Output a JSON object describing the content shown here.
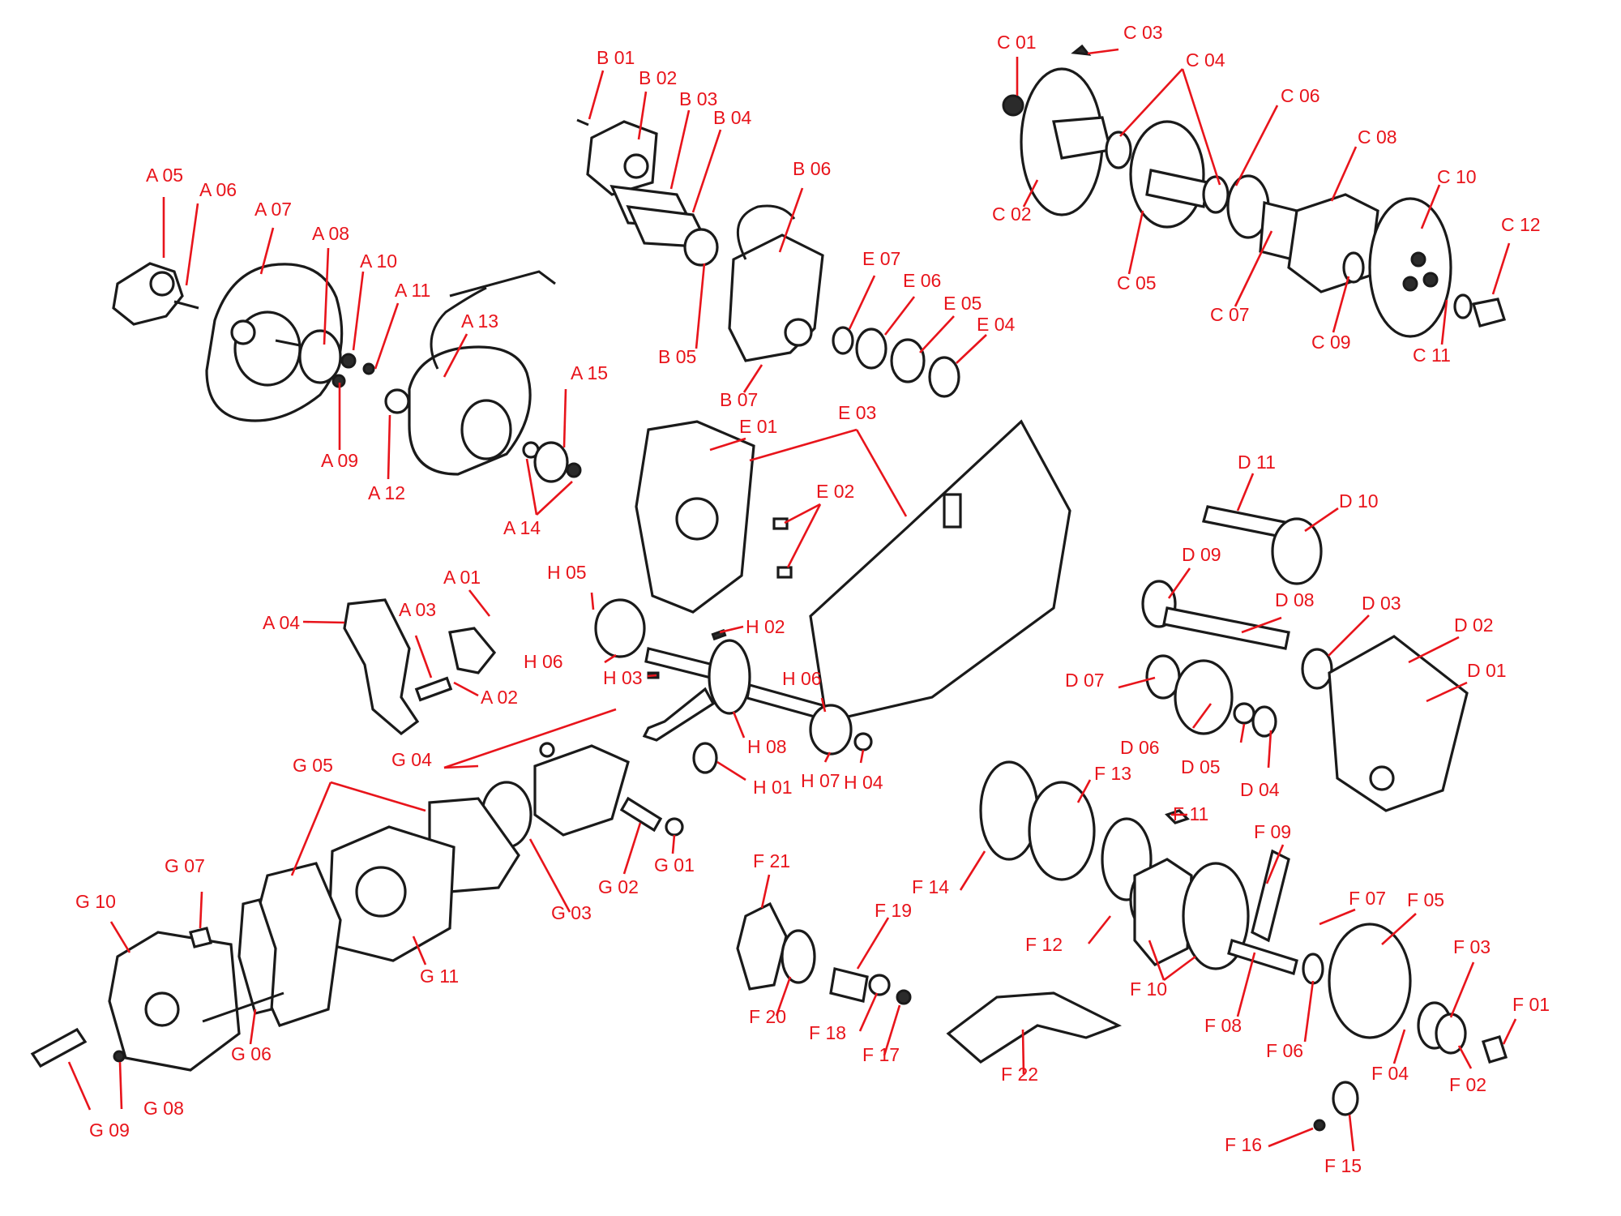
{
  "labels": [
    {
      "text": "A 01"
    },
    {
      "text": "A 02"
    },
    {
      "text": "A 03"
    },
    {
      "text": "A 04"
    },
    {
      "text": "A 05"
    },
    {
      "text": "A 06"
    },
    {
      "text": "A 07"
    },
    {
      "text": "A 08"
    },
    {
      "text": "A 09"
    },
    {
      "text": "A 10"
    },
    {
      "text": "A 11"
    },
    {
      "text": "A 12"
    },
    {
      "text": "A 13"
    },
    {
      "text": "A 14"
    },
    {
      "text": "A 15"
    },
    {
      "text": "B 01"
    },
    {
      "text": "B 02"
    },
    {
      "text": "B 03"
    },
    {
      "text": "B 04"
    },
    {
      "text": "B 05"
    },
    {
      "text": "B 06"
    },
    {
      "text": "B 07"
    },
    {
      "text": "C 01"
    },
    {
      "text": "C 02"
    },
    {
      "text": "C 03"
    },
    {
      "text": "C 04"
    },
    {
      "text": "C 05"
    },
    {
      "text": "C 06"
    },
    {
      "text": "C 07"
    },
    {
      "text": "C 08"
    },
    {
      "text": "C 09"
    },
    {
      "text": "C 10"
    },
    {
      "text": "C 11"
    },
    {
      "text": "C 12"
    },
    {
      "text": "D 01"
    },
    {
      "text": "D 02"
    },
    {
      "text": "D 03"
    },
    {
      "text": "D 04"
    },
    {
      "text": "D 05"
    },
    {
      "text": "D 06"
    },
    {
      "text": "D 07"
    },
    {
      "text": "D 08"
    },
    {
      "text": "D 09"
    },
    {
      "text": "D 10"
    },
    {
      "text": "D 11"
    },
    {
      "text": "E 01"
    },
    {
      "text": "E 02"
    },
    {
      "text": "E 03"
    },
    {
      "text": "E 04"
    },
    {
      "text": "E 05"
    },
    {
      "text": "E 06"
    },
    {
      "text": "E 07"
    },
    {
      "text": "F 01"
    },
    {
      "text": "F 02"
    },
    {
      "text": "F 03"
    },
    {
      "text": "F 04"
    },
    {
      "text": "F 05"
    },
    {
      "text": "F 06"
    },
    {
      "text": "F 07"
    },
    {
      "text": "F 08"
    },
    {
      "text": "F 09"
    },
    {
      "text": "F 10"
    },
    {
      "text": "F 11"
    },
    {
      "text": "F 12"
    },
    {
      "text": "F 13"
    },
    {
      "text": "F 14"
    },
    {
      "text": "F 15"
    },
    {
      "text": "F 16"
    },
    {
      "text": "F 17"
    },
    {
      "text": "F 18"
    },
    {
      "text": "F 19"
    },
    {
      "text": "F 20"
    },
    {
      "text": "F 21"
    },
    {
      "text": "F 22"
    },
    {
      "text": "G 01"
    },
    {
      "text": "G 02"
    },
    {
      "text": "G 03"
    },
    {
      "text": "G 04"
    },
    {
      "text": "G 05"
    },
    {
      "text": "G 06"
    },
    {
      "text": "G 07"
    },
    {
      "text": "G 08"
    },
    {
      "text": "G 09"
    },
    {
      "text": "G 10"
    },
    {
      "text": "G 11"
    },
    {
      "text": "H 01"
    },
    {
      "text": "H 02"
    },
    {
      "text": "H 03"
    },
    {
      "text": "H 04"
    },
    {
      "text": "H 05"
    },
    {
      "text": "H 06"
    },
    {
      "text": "H 07"
    },
    {
      "text": "H 08"
    }
  ],
  "colors": {
    "label": "#e8141b",
    "line_art": "#1a1a1a",
    "background": "#ffffff"
  }
}
